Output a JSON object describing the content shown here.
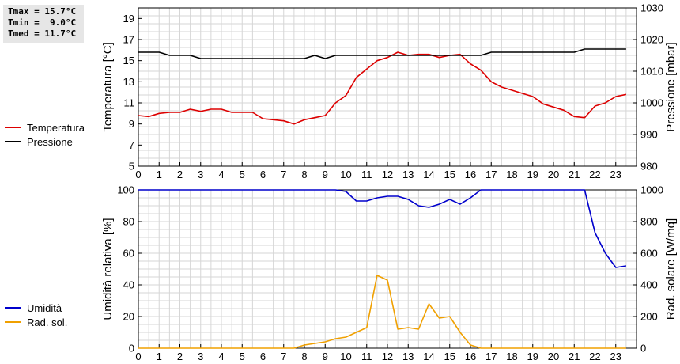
{
  "stats": {
    "tmax": "Tmax = 15.7°C",
    "tmin": "Tmin =  9.0°C",
    "tmed": "Tmed = 11.7°C"
  },
  "chart_data": [
    {
      "type": "line",
      "x_ticks": [
        "0",
        "1",
        "2",
        "3",
        "4",
        "5",
        "6",
        "7",
        "8",
        "9",
        "10",
        "11",
        "12",
        "13",
        "14",
        "15",
        "16",
        "17",
        "18",
        "19",
        "20",
        "21",
        "22",
        "23"
      ],
      "ylabel_left": "Temperatura [°C]",
      "ylabel_right": "Pressione [mbar]",
      "ylim_left": [
        5,
        20
      ],
      "ylim_right": [
        980,
        1030
      ],
      "yticks_left": [
        5,
        7,
        9,
        11,
        13,
        15,
        17,
        19
      ],
      "yticks_right": [
        980,
        990,
        1000,
        1010,
        1020,
        1030
      ],
      "xlim": [
        0,
        24
      ],
      "grid": true,
      "legend_position": "left",
      "series": [
        {
          "name": "Temperatura",
          "axis": "left",
          "color": "#dd0000",
          "x": [
            0,
            0.5,
            1,
            1.5,
            2,
            2.5,
            3,
            3.5,
            4,
            4.5,
            5,
            5.5,
            6,
            6.5,
            7,
            7.5,
            8,
            8.5,
            9,
            9.5,
            10,
            10.5,
            11,
            11.5,
            12,
            12.5,
            13,
            13.5,
            14,
            14.5,
            15,
            15.5,
            16,
            16.5,
            17,
            17.5,
            18,
            18.5,
            19,
            19.5,
            20,
            20.5,
            21,
            21.5,
            22,
            22.5,
            23,
            23.5
          ],
          "y": [
            9.8,
            9.7,
            10.0,
            10.1,
            10.1,
            10.4,
            10.2,
            10.4,
            10.4,
            10.1,
            10.1,
            10.1,
            9.5,
            9.4,
            9.3,
            9.0,
            9.4,
            9.6,
            9.8,
            11.0,
            11.7,
            13.4,
            14.2,
            15.0,
            15.3,
            15.8,
            15.5,
            15.6,
            15.6,
            15.3,
            15.5,
            15.6,
            14.7,
            14.1,
            13.0,
            12.5,
            12.2,
            11.9,
            11.6,
            10.9,
            10.6,
            10.3,
            9.7,
            9.6,
            10.7,
            11.0,
            11.6,
            11.8
          ]
        },
        {
          "name": "Pressione",
          "axis": "right",
          "color": "#000000",
          "x": [
            0,
            0.5,
            1,
            1.5,
            2,
            2.5,
            3,
            3.5,
            4,
            4.5,
            5,
            5.5,
            6,
            6.5,
            7,
            7.5,
            8,
            8.5,
            9,
            9.5,
            10,
            10.5,
            11,
            11.5,
            12,
            12.5,
            13,
            13.5,
            14,
            14.5,
            15,
            15.5,
            16,
            16.5,
            17,
            17.5,
            18,
            18.5,
            19,
            19.5,
            20,
            20.5,
            21,
            21.5,
            22,
            22.5,
            23,
            23.5
          ],
          "y": [
            1016,
            1016,
            1016,
            1015,
            1015,
            1015,
            1014,
            1014,
            1014,
            1014,
            1014,
            1014,
            1014,
            1014,
            1014,
            1014,
            1014,
            1015,
            1014,
            1015,
            1015,
            1015,
            1015,
            1015,
            1015,
            1015,
            1015,
            1015,
            1015,
            1015,
            1015,
            1015,
            1015,
            1015,
            1016,
            1016,
            1016,
            1016,
            1016,
            1016,
            1016,
            1016,
            1016,
            1017,
            1017,
            1017,
            1017,
            1017
          ]
        }
      ]
    },
    {
      "type": "line",
      "x_ticks": [
        "0",
        "1",
        "2",
        "3",
        "4",
        "5",
        "6",
        "7",
        "8",
        "9",
        "10",
        "11",
        "12",
        "13",
        "14",
        "15",
        "16",
        "17",
        "18",
        "19",
        "20",
        "21",
        "22",
        "23"
      ],
      "ylabel_left": "Umidità relativa [%]",
      "ylabel_right": "Rad. solare [W/mq]",
      "ylim_left": [
        0,
        100
      ],
      "ylim_right": [
        0,
        1000
      ],
      "yticks_left": [
        0,
        20,
        40,
        60,
        80,
        100
      ],
      "yticks_right": [
        0,
        200,
        400,
        600,
        800,
        1000
      ],
      "xlim": [
        0,
        24
      ],
      "grid": true,
      "legend_position": "left",
      "series": [
        {
          "name": "Umidità",
          "axis": "left",
          "color": "#0000cc",
          "x": [
            0,
            9.5,
            10,
            10.5,
            11,
            11.5,
            12,
            12.5,
            13,
            13.5,
            14,
            14.5,
            15,
            15.5,
            16,
            16.5,
            17,
            21,
            21.5,
            22,
            22.5,
            23,
            23.5
          ],
          "y": [
            100,
            100,
            99,
            93,
            93,
            95,
            96,
            96,
            94,
            90,
            89,
            91,
            94,
            91,
            95,
            100,
            100,
            100,
            100,
            73,
            60,
            51,
            52
          ]
        },
        {
          "name": "Rad. sol.",
          "axis": "right",
          "color": "#f0a000",
          "x": [
            0,
            7.5,
            8,
            8.5,
            9,
            9.5,
            10,
            10.5,
            11,
            11.5,
            12,
            12.5,
            13,
            13.5,
            14,
            14.5,
            15,
            15.5,
            16,
            16.5,
            17,
            23.5
          ],
          "y": [
            0,
            0,
            20,
            30,
            40,
            60,
            70,
            100,
            130,
            460,
            430,
            120,
            130,
            120,
            280,
            190,
            200,
            100,
            20,
            0,
            0,
            0
          ]
        }
      ]
    }
  ]
}
